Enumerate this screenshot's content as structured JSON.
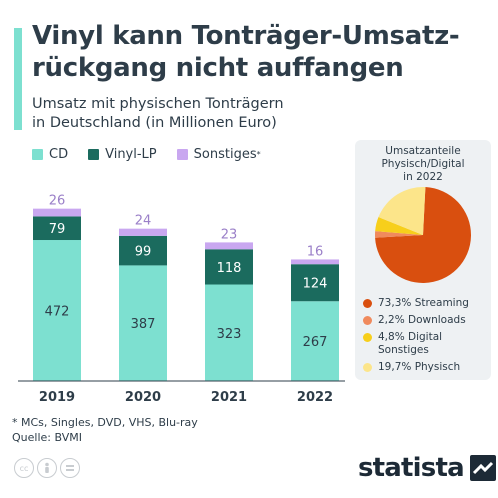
{
  "title_line1": "Vinyl kann Tonträger-Umsatz-",
  "title_line2": "rückgang nicht auffangen",
  "subtitle_line1": "Umsatz mit physischen Tonträgern",
  "subtitle_line2": "in Deutschland (in Millionen Euro)",
  "legend": {
    "cd": "CD",
    "vinyl": "Vinyl-LP",
    "other": "Sonstiges",
    "other_sup": "*"
  },
  "colors": {
    "cd": "#7de0d0",
    "vinyl": "#1b6b5e",
    "other": "#c9a7f0",
    "streaming": "#d94f0f",
    "downloads": "#f08a5d",
    "digital_other": "#f7cf1b",
    "physical": "#fce58a",
    "text": "#2e3d49"
  },
  "chart_data": [
    {
      "type": "bar",
      "stacked": true,
      "categories": [
        "2019",
        "2020",
        "2021",
        "2022"
      ],
      "series": [
        {
          "name": "CD",
          "values": [
            472,
            387,
            323,
            267
          ]
        },
        {
          "name": "Vinyl-LP",
          "values": [
            79,
            99,
            118,
            124
          ]
        },
        {
          "name": "Sonstiges*",
          "values": [
            26,
            24,
            23,
            16
          ]
        }
      ],
      "ylim": [
        0,
        600
      ]
    },
    {
      "type": "pie",
      "title_lines": [
        "Umsatzanteile",
        "Physisch/Digital",
        "in 2022"
      ],
      "slices": [
        {
          "label": "Streaming",
          "value": 73.3,
          "text": "73,3% Streaming"
        },
        {
          "label": "Downloads",
          "value": 2.2,
          "text": "2,2% Downloads"
        },
        {
          "label": "Digital Sonstiges",
          "value": 4.8,
          "text": "4,8% Digital",
          "text2": "Sonstiges"
        },
        {
          "label": "Physisch",
          "value": 19.7,
          "text": "19,7% Physisch"
        }
      ]
    }
  ],
  "footnote_line1": "* MCs, Singles, DVD, VHS, Blu-ray",
  "footnote_line2": "Quelle: BVMI",
  "cc_icons": [
    "cc-icon",
    "person-icon",
    "equals-icon"
  ],
  "brand": "statista"
}
